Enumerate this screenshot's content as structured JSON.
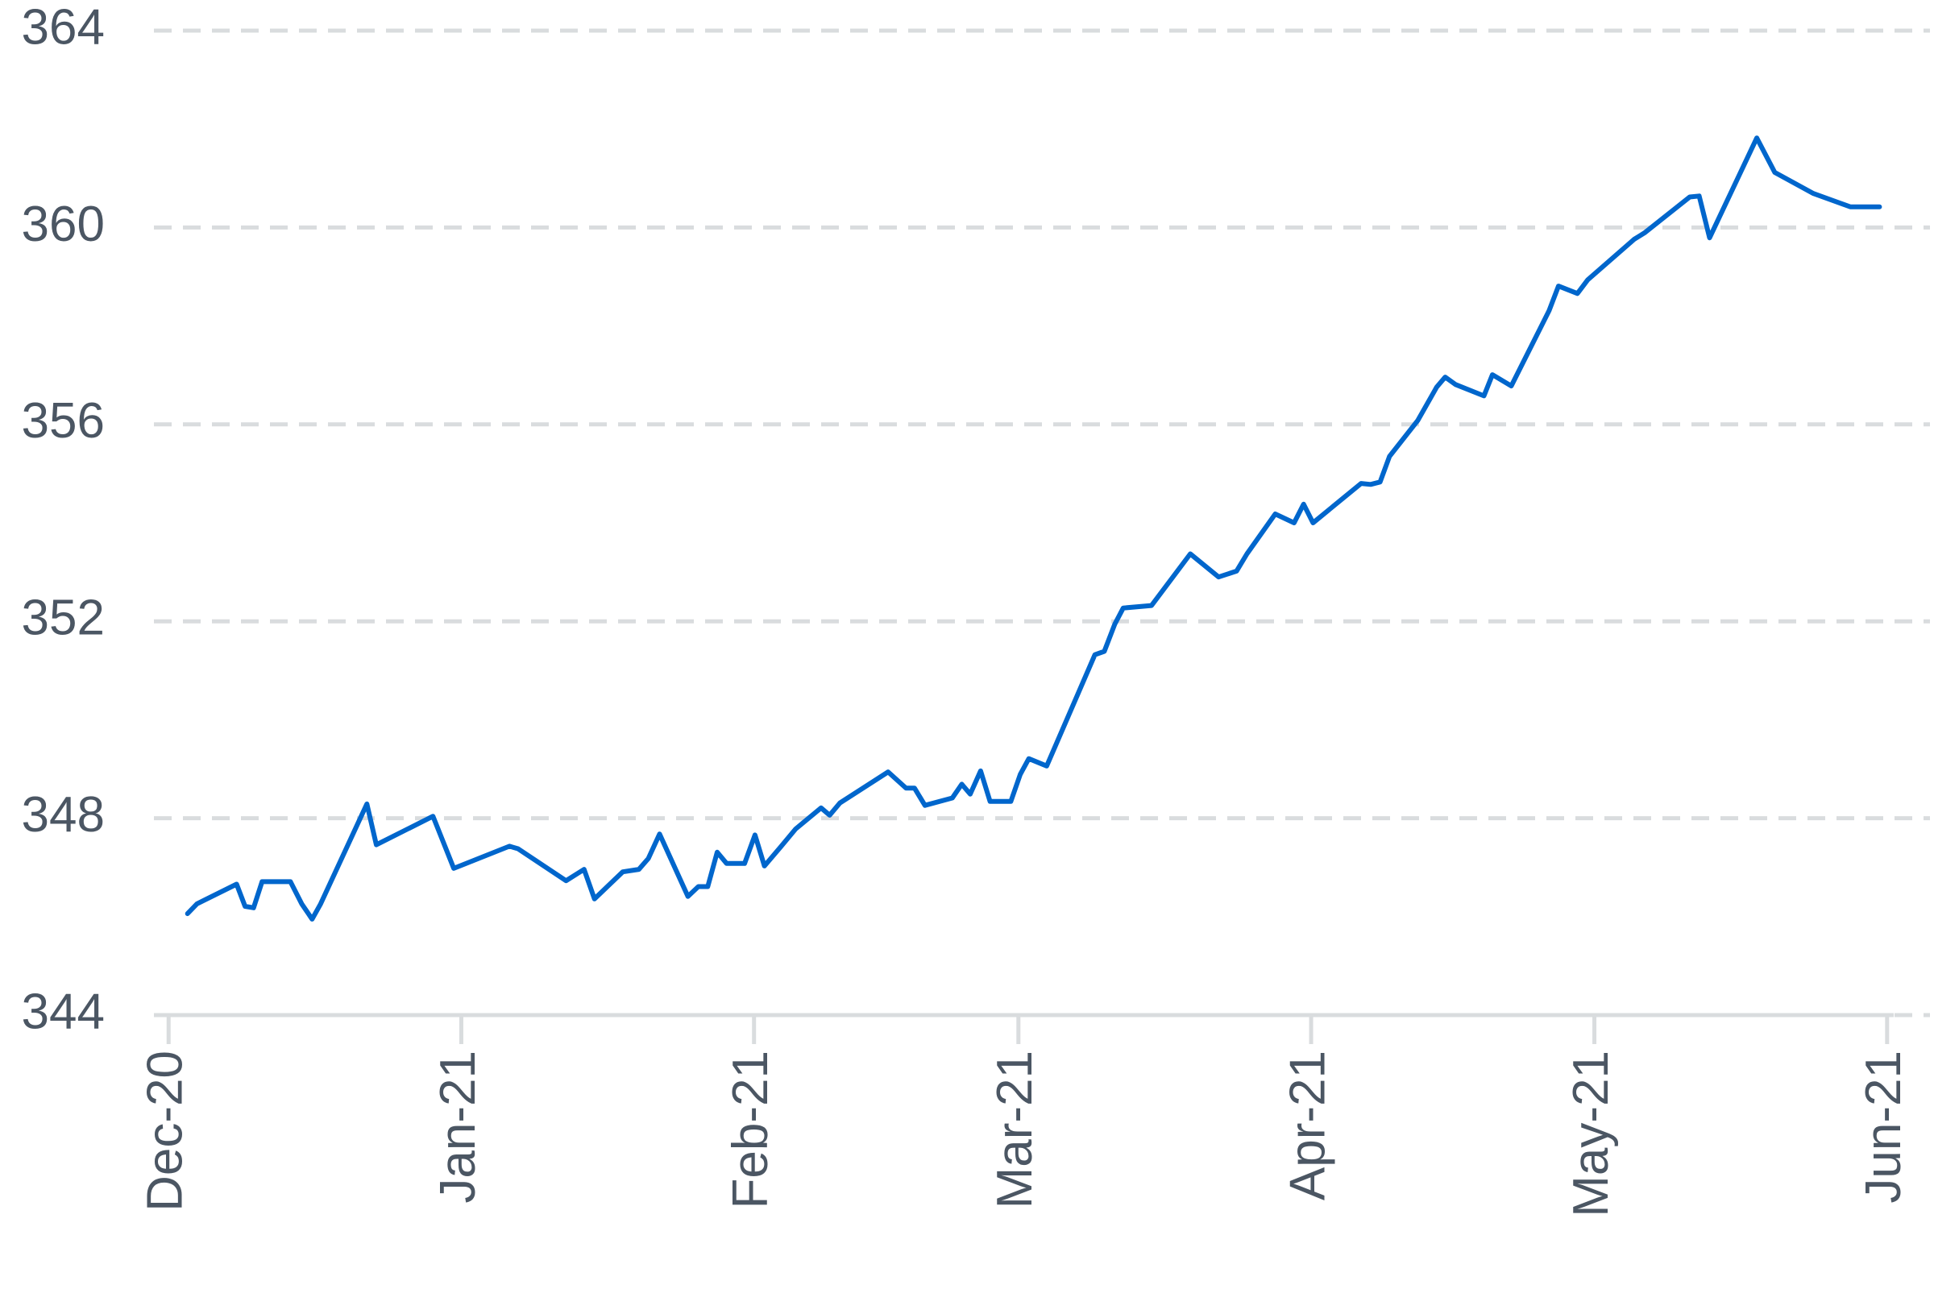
{
  "chart_data": {
    "type": "line",
    "color": "#0066cc",
    "grid": true,
    "x": [
      2.0,
      3.0,
      7.2,
      8.1,
      9.0,
      9.9,
      12.9,
      14.1,
      15.2,
      16.1,
      21.0,
      22.0,
      28.0,
      30.2,
      36.1,
      37.0,
      42.1,
      44.0,
      45.1,
      48.1,
      49.8,
      50.8,
      52.0,
      55.0,
      56.1,
      57.1,
      58.1,
      59.1,
      61.0,
      62.1,
      63.1,
      64.8,
      66.4,
      69.1,
      70.0,
      71.1,
      76.2,
      78.1,
      79.0,
      80.1,
      83.0,
      84.0,
      84.9,
      86.0,
      87.0,
      89.2,
      90.2,
      91.1,
      93.0,
      98.1,
      99.1,
      100.2,
      101.1,
      104.1,
      108.2,
      111.2,
      113.1,
      114.2,
      117.2,
      119.2,
      120.2,
      121.2,
      126.3,
      127.3,
      128.3,
      129.3,
      132.3,
      134.3,
      135.2,
      136.3,
      139.3,
      140.2,
      142.2,
      146.2,
      147.2,
      149.2,
      150.3,
      155.2,
      156.3,
      161.1,
      162.1,
      163.2,
      168.2,
      170.1,
      174.2,
      178.1,
      181.2
    ],
    "values": [
      346.06,
      346.26,
      346.66,
      346.21,
      346.18,
      346.71,
      346.71,
      346.26,
      345.95,
      346.26,
      348.29,
      347.46,
      348.04,
      346.98,
      347.43,
      347.38,
      346.73,
      346.96,
      346.36,
      346.91,
      346.96,
      347.18,
      347.68,
      346.41,
      346.61,
      346.61,
      347.31,
      347.08,
      347.08,
      347.66,
      347.03,
      347.41,
      347.78,
      348.21,
      348.06,
      348.31,
      348.94,
      348.61,
      348.61,
      348.26,
      348.41,
      348.69,
      348.49,
      348.96,
      348.34,
      348.34,
      348.89,
      349.21,
      349.06,
      351.32,
      351.39,
      351.94,
      352.27,
      352.32,
      353.37,
      352.9,
      353.02,
      353.37,
      354.18,
      354.0,
      354.38,
      354.0,
      354.8,
      354.78,
      354.83,
      355.35,
      356.08,
      356.76,
      356.96,
      356.81,
      356.58,
      357.01,
      356.78,
      358.31,
      358.81,
      358.66,
      358.94,
      359.76,
      359.89,
      360.62,
      360.64,
      359.79,
      361.82,
      361.12,
      360.69,
      360.42,
      360.42
    ],
    "xlim": [
      -1.3,
      182.7
    ],
    "xticks": [
      {
        "value": 0,
        "label": "Dec-20"
      },
      {
        "value": 31,
        "label": "Jan-21"
      },
      {
        "value": 62,
        "label": "Feb-21"
      },
      {
        "value": 90,
        "label": "Mar-21"
      },
      {
        "value": 121,
        "label": "Apr-21"
      },
      {
        "value": 151,
        "label": "May-21"
      },
      {
        "value": 182,
        "label": "Jun-21"
      }
    ],
    "ylim": [
      344,
      364
    ],
    "yticks": [
      344,
      348,
      352,
      356,
      360,
      364
    ]
  }
}
